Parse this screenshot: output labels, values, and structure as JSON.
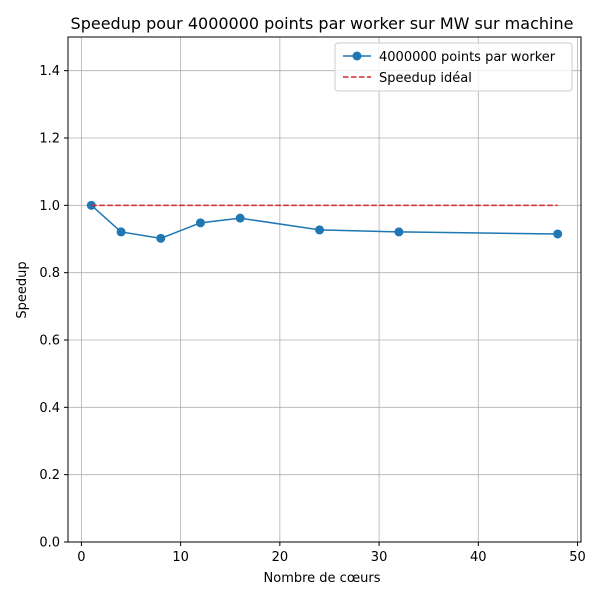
{
  "chart_data": {
    "type": "line",
    "title": "Speedup pour 4000000 points par worker sur MW sur machine",
    "xlabel": "Nombre de cœurs",
    "ylabel": "Speedup",
    "xlim": [
      -1.35,
      50.35
    ],
    "ylim": [
      0.0,
      1.5
    ],
    "xticks": [
      0,
      10,
      20,
      30,
      40,
      50
    ],
    "yticks": [
      0.0,
      0.2,
      0.4,
      0.6,
      0.8,
      1.0,
      1.2,
      1.4
    ],
    "xtick_labels": [
      "0",
      "10",
      "20",
      "30",
      "40",
      "50"
    ],
    "ytick_labels": [
      "0.0",
      "0.2",
      "0.4",
      "0.6",
      "0.8",
      "1.0",
      "1.2",
      "1.4"
    ],
    "grid": true,
    "legend_position": "top-right",
    "series": [
      {
        "name": "4000000 points par worker",
        "color": "#1f77b4",
        "style": "solid",
        "marker": "circle",
        "x": [
          1,
          4,
          8,
          12,
          16,
          24,
          32,
          48
        ],
        "y": [
          1.0,
          0.921,
          0.902,
          0.948,
          0.962,
          0.927,
          0.921,
          0.915
        ]
      },
      {
        "name": "Speedup idéal",
        "color": "#d62728",
        "style": "dashed",
        "marker": "none",
        "x": [
          1,
          48
        ],
        "y": [
          1.0,
          1.0
        ]
      }
    ]
  }
}
